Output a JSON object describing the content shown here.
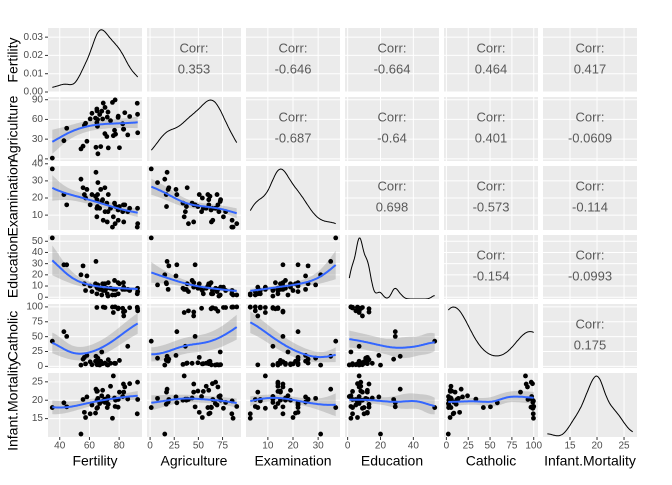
{
  "chart_data": {
    "type": "scatter-matrix",
    "corr_label": "Corr:",
    "point_color": "#000000",
    "smooth_color": "#3366ff",
    "panel_background": "#ebebeb",
    "grid": true,
    "variables": [
      {
        "name": "Fertility",
        "values": [
          80.2,
          83.1,
          92.5,
          85.8,
          76.9,
          76.1,
          83.8,
          92.4,
          82.4,
          82.9,
          87.1,
          64.1,
          66.9,
          68.9,
          61.7,
          68.3,
          71.7,
          55.7,
          54.3,
          65.1,
          65.5,
          65.0,
          56.6,
          57.4,
          72.5,
          74.2,
          72.0,
          60.5,
          58.3,
          65.4,
          75.5,
          69.3,
          77.3,
          70.5,
          79.4,
          65.0,
          92.2,
          79.3,
          70.4,
          65.7,
          72.7,
          64.4,
          77.6,
          67.6,
          35.0,
          44.7,
          42.8
        ],
        "xlim": [
          32.1,
          95.4
        ],
        "xticks": [
          40,
          60,
          80
        ],
        "ylim": [
          0,
          0.035
        ],
        "yticks": [
          {
            "value": 0,
            "label": "0.00"
          },
          {
            "value": 0.01,
            "label": "0.01"
          },
          {
            "value": 0.02,
            "label": "0.02"
          },
          {
            "value": 0.03,
            "label": "0.03"
          }
        ]
      },
      {
        "name": "Agriculture",
        "values": [
          17.0,
          45.1,
          39.7,
          36.5,
          43.5,
          35.3,
          70.2,
          67.8,
          53.3,
          45.2,
          64.5,
          62.0,
          67.5,
          60.7,
          69.3,
          72.6,
          34.0,
          19.4,
          15.2,
          73.0,
          59.8,
          55.1,
          50.9,
          54.1,
          71.2,
          58.1,
          63.5,
          60.8,
          26.8,
          49.5,
          85.9,
          84.9,
          89.7,
          78.2,
          64.9,
          75.9,
          84.6,
          63.1,
          38.4,
          7.7,
          16.7,
          17.6,
          37.6,
          18.7,
          1.2,
          46.6,
          27.7
        ],
        "xlim": [
          -3.2,
          94.1
        ],
        "xticks": [
          0,
          25,
          50,
          75
        ],
        "ylim": [
          -3.2,
          94.1
        ],
        "yticks": [
          0,
          30,
          60,
          90
        ]
      },
      {
        "name": "Examination",
        "values": [
          15,
          6,
          5,
          12,
          17,
          9,
          16,
          14,
          12,
          16,
          14,
          21,
          14,
          19,
          22,
          18,
          17,
          26,
          31,
          19,
          22,
          14,
          22,
          20,
          12,
          14,
          6,
          16,
          25,
          15,
          3,
          7,
          5,
          12,
          7,
          9,
          3,
          13,
          26,
          29,
          22,
          35,
          15,
          25,
          37,
          16,
          22
        ],
        "xlim": [
          1.3,
          38.7
        ],
        "xticks": [
          10,
          20,
          30
        ],
        "ylim": [
          1.3,
          38.7
        ],
        "yticks": [
          10,
          20,
          30,
          40
        ]
      },
      {
        "name": "Education",
        "values": [
          12,
          9,
          5,
          7,
          15,
          7,
          7,
          8,
          7,
          13,
          6,
          12,
          7,
          12,
          5,
          2,
          8,
          28,
          20,
          9,
          10,
          3,
          12,
          6,
          1,
          8,
          3,
          10,
          19,
          8,
          2,
          6,
          2,
          6,
          3,
          9,
          3,
          13,
          12,
          11,
          13,
          32,
          7,
          7,
          53,
          29,
          29
        ],
        "xlim": [
          -1.6,
          55.6
        ],
        "xticks": [
          0,
          20,
          40
        ],
        "ylim": [
          -1.6,
          55.6
        ],
        "yticks": [
          0,
          10,
          20,
          30,
          40,
          50
        ]
      },
      {
        "name": "Catholic",
        "values": [
          9.96,
          84.84,
          93.4,
          33.77,
          5.16,
          90.57,
          92.85,
          97.16,
          97.67,
          91.38,
          98.61,
          8.52,
          2.27,
          4.43,
          2.82,
          24.2,
          3.3,
          12.11,
          2.15,
          2.84,
          5.23,
          4.52,
          15.14,
          4.2,
          2.4,
          5.23,
          2.56,
          7.72,
          18.46,
          6.1,
          99.71,
          99.68,
          100.0,
          98.96,
          98.22,
          99.06,
          99.46,
          96.83,
          5.62,
          13.79,
          11.22,
          16.92,
          4.97,
          8.65,
          42.34,
          50.43,
          58.33
        ],
        "xlim": [
          -2.74,
          104.9
        ],
        "xticks": [
          0,
          25,
          50,
          75,
          100
        ],
        "ylim": [
          -2.74,
          104.9
        ],
        "yticks": [
          0,
          25,
          50,
          75,
          100
        ]
      },
      {
        "name": "Infant.Mortality",
        "values": [
          22.2,
          22.2,
          20.2,
          20.3,
          20.6,
          26.6,
          23.6,
          24.9,
          21.0,
          24.4,
          24.5,
          16.5,
          19.1,
          22.7,
          18.7,
          21.2,
          20.0,
          20.2,
          10.8,
          20.0,
          18.0,
          22.4,
          16.7,
          15.3,
          21.0,
          23.8,
          18.0,
          16.3,
          20.9,
          22.5,
          15.1,
          19.8,
          18.3,
          19.4,
          20.2,
          17.8,
          16.3,
          18.1,
          20.3,
          20.5,
          18.9,
          23.0,
          20.0,
          19.5,
          18.0,
          18.2,
          19.3
        ],
        "xlim": [
          10.0,
          27.4
        ],
        "xticks": [
          15,
          20,
          25
        ],
        "ylim": [
          10.0,
          27.4
        ],
        "yticks": [
          15,
          20,
          25
        ]
      }
    ],
    "correlations": [
      0.353,
      -0.646,
      -0.664,
      0.464,
      0.417,
      -0.687,
      -0.64,
      0.401,
      -0.0609,
      0.698,
      -0.573,
      -0.114,
      -0.154,
      -0.0993,
      0.175
    ]
  }
}
